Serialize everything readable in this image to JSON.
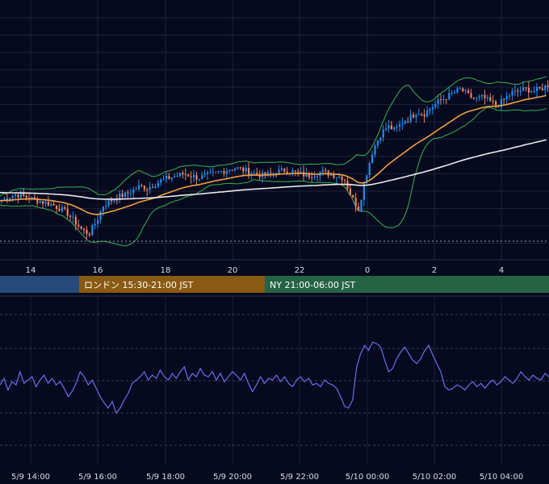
{
  "chart_data": [
    {
      "type": "candlestick",
      "panel": "price",
      "x_ticks_top": [
        "14",
        "16",
        "18",
        "20",
        "22",
        "0",
        "2",
        "4"
      ],
      "indicators": [
        "bollinger-bands",
        "moving-average-short",
        "moving-average-long"
      ],
      "colors": {
        "up": "#1e8ff0",
        "down": "#f0825f",
        "ma_short": "#f0a040",
        "ma_long": "#e8e8ee",
        "bands": "#32b450",
        "dotted_line": "#9aa0b4"
      },
      "close_approx": [
        50,
        52,
        53,
        52,
        51,
        50,
        49,
        48,
        46,
        44,
        40,
        36,
        34,
        40,
        48,
        50,
        52,
        53,
        55,
        57,
        56,
        58,
        60,
        61,
        62,
        63,
        62,
        61,
        62,
        63,
        64,
        65,
        66,
        65,
        64,
        63,
        62,
        63,
        64,
        65,
        64,
        63,
        62,
        63,
        64,
        63,
        62,
        61,
        52,
        46,
        62,
        75,
        82,
        86,
        84,
        88,
        90,
        93,
        92,
        95,
        98,
        100,
        102,
        104,
        101,
        99,
        100,
        98,
        96,
        99,
        102,
        103,
        104,
        103,
        104,
        106
      ]
    },
    {
      "type": "line",
      "panel": "oscillator",
      "series_color": "#6a6cf0",
      "x_ticks": [
        "5/9 14:00",
        "5/9 16:00",
        "5/9 18:00",
        "5/9 20:00",
        "5/9 22:00",
        "5/10 00:00",
        "5/10 02:00",
        "5/10 04:00"
      ],
      "values_approx": [
        47,
        51,
        44,
        49,
        47,
        55,
        48,
        50,
        52,
        46,
        50,
        53,
        48,
        51,
        47,
        49,
        45,
        40,
        43,
        48,
        55,
        52,
        47,
        50,
        45,
        40,
        36,
        33,
        37,
        30,
        33,
        38,
        42,
        48,
        50,
        52,
        55,
        50,
        53,
        51,
        56,
        52,
        50,
        54,
        51,
        55,
        58,
        50,
        54,
        52,
        57,
        53,
        52,
        55,
        50,
        54,
        49,
        52,
        55,
        53,
        50,
        54,
        48,
        43,
        47,
        52,
        48,
        51,
        50,
        53,
        49,
        52,
        48,
        46,
        50,
        52,
        49,
        51,
        47,
        48,
        46,
        50,
        48,
        47,
        45,
        40,
        34,
        33,
        38,
        58,
        66,
        71,
        68,
        73,
        72,
        70,
        62,
        55,
        57,
        63,
        67,
        70,
        66,
        62,
        60,
        63,
        68,
        71,
        65,
        60,
        55,
        46,
        44,
        45,
        47,
        46,
        44,
        47,
        49,
        46,
        48,
        45,
        48,
        50,
        47,
        49,
        52,
        50,
        48,
        51,
        55,
        52,
        50,
        53,
        51,
        50,
        54,
        52
      ]
    }
  ],
  "sessions": [
    {
      "label": "",
      "color": "#264a7a"
    },
    {
      "label": "ロンドン 15:30-21:00 JST",
      "color": "#8a5a12"
    },
    {
      "label": "NY 21:00-06:00 JST",
      "color": "#246444"
    }
  ]
}
